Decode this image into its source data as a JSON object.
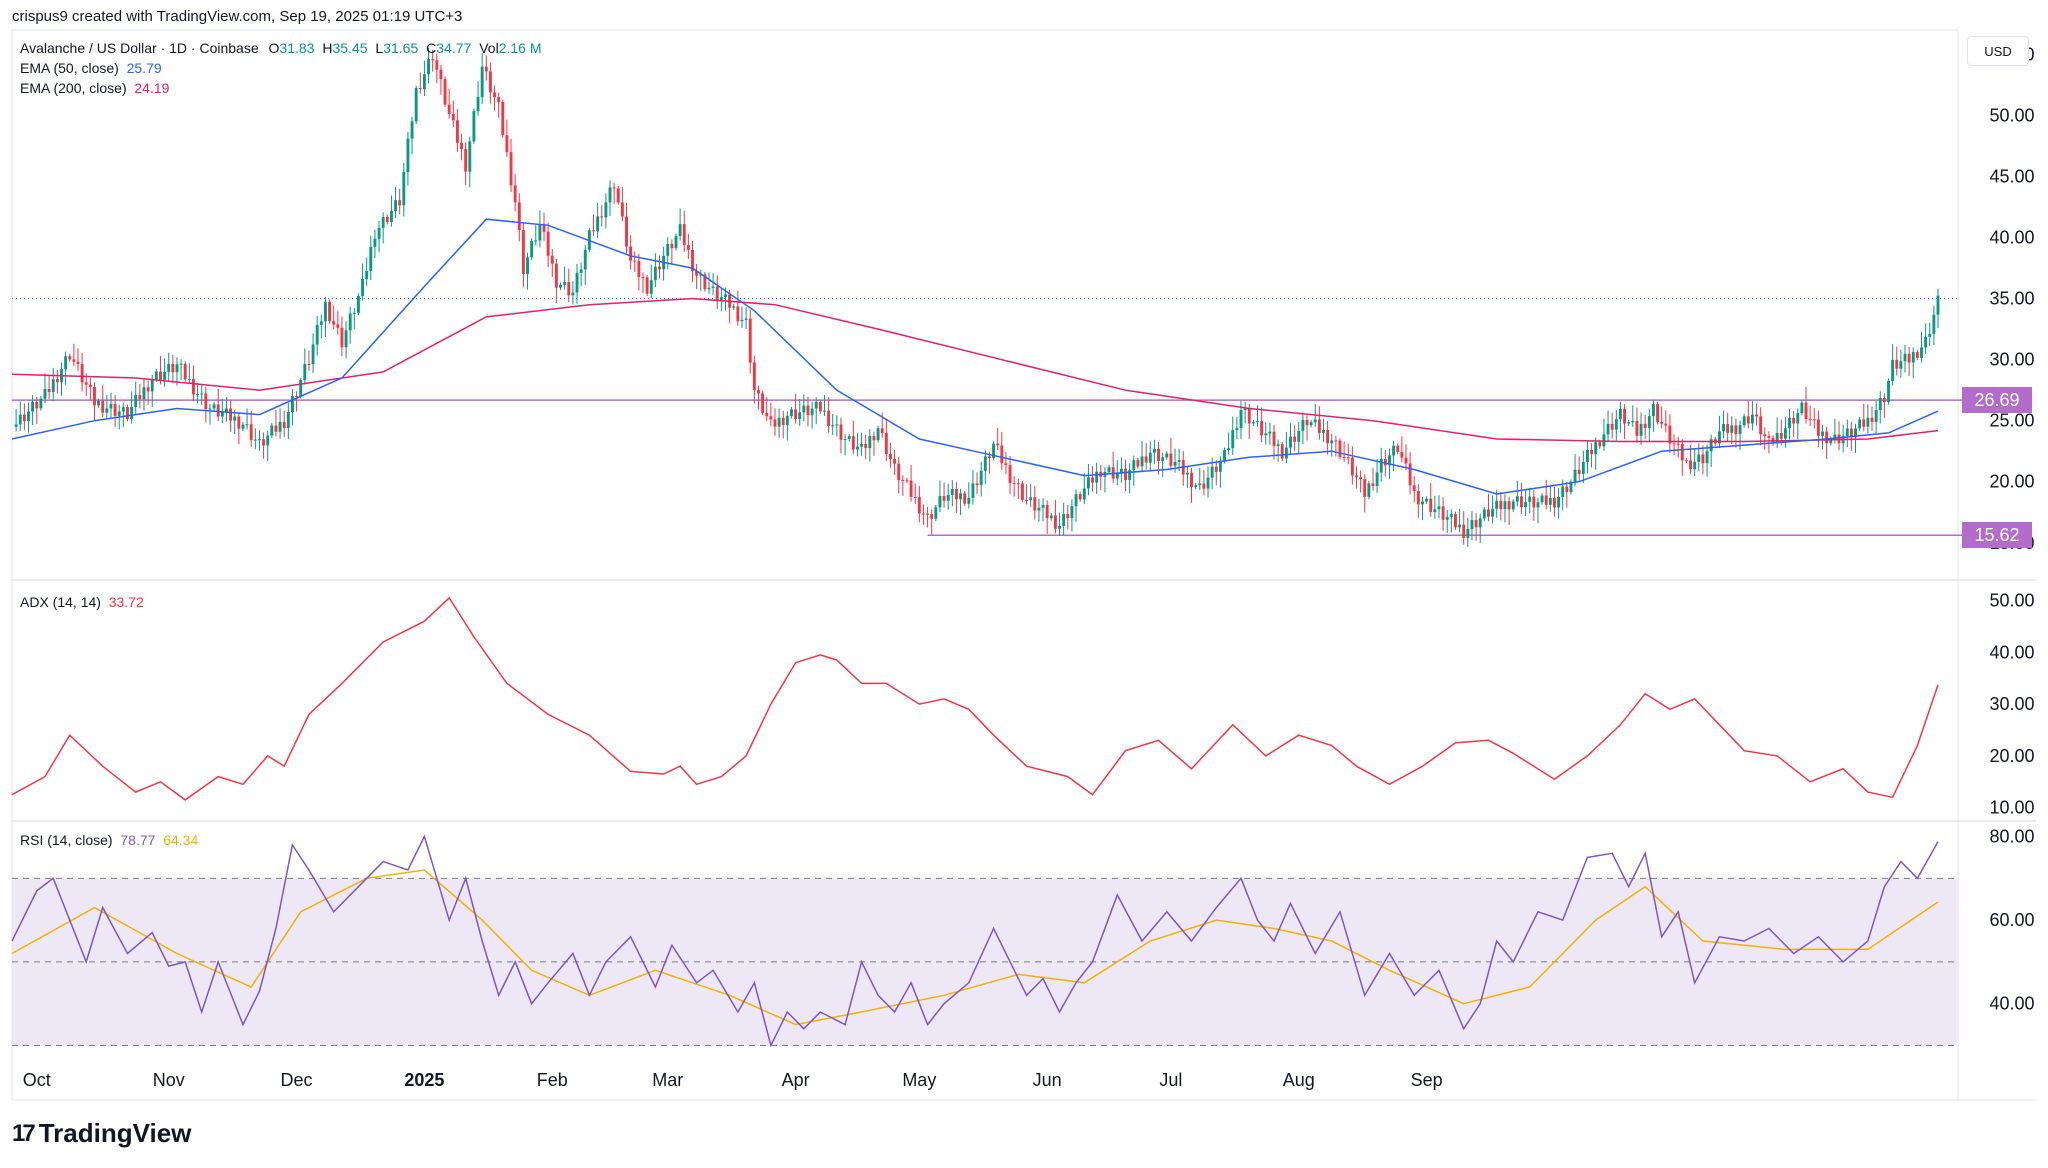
{
  "caption": "crispus9 created with TradingView.com, Sep 19, 2025 01:19 UTC+3",
  "brand": {
    "mark": "17",
    "name": "TradingView"
  },
  "currency": "USD",
  "legend": {
    "symbol": "Avalanche / US Dollar · 1D · Coinbase",
    "o_label": "O",
    "o_value": "31.83",
    "h_label": "H",
    "h_value": "35.45",
    "l_label": "L",
    "l_value": "31.65",
    "c_label": "C",
    "c_value": "34.77",
    "vol_label": "Vol",
    "vol_value": "2.16 M",
    "ema50_label": "EMA (50, close)",
    "ema50_value": "25.79",
    "ema200_label": "EMA (200, close)",
    "ema200_value": "24.19",
    "adx_label": "ADX (14, 14)",
    "adx_value": "33.72",
    "rsi_label": "RSI (14, close)",
    "rsi_value": "78.77",
    "rsi_ma_value": "64.34"
  },
  "colors": {
    "up": "#089981",
    "down": "#f23645",
    "ema50": "#2962ff",
    "ema200": "#e91e63",
    "adx": "#f23645",
    "rsi": "#7e57c2",
    "rsi_ma": "#f0b400",
    "level": "#b36cc9",
    "band": "#ede7f6"
  },
  "chart_data": {
    "type": "candlestick",
    "x_ticks": [
      "Oct",
      "Nov",
      "Dec",
      "2025",
      "Feb",
      "Mar",
      "Apr",
      "May",
      "Jun",
      "Jul",
      "Aug",
      "Sep"
    ],
    "price_axis": {
      "ticks": [
        "55.00",
        "50.00",
        "45.00",
        "40.00",
        "35.00",
        "30.00",
        "25.00",
        "20.00",
        "15.00"
      ],
      "range": [
        14,
        57
      ]
    },
    "levels": [
      {
        "value": 26.69,
        "label": "26.69"
      },
      {
        "value": 15.62,
        "label": "15.62"
      }
    ],
    "last_price": 34.77,
    "close_path": [
      [
        0,
        24.5
      ],
      [
        8,
        27.0
      ],
      [
        14,
        30.5
      ],
      [
        20,
        26.5
      ],
      [
        28,
        25.5
      ],
      [
        34,
        28.5
      ],
      [
        40,
        29.5
      ],
      [
        48,
        26.0
      ],
      [
        56,
        24.8
      ],
      [
        60,
        23.0
      ],
      [
        66,
        25.0
      ],
      [
        72,
        30.0
      ],
      [
        76,
        34.5
      ],
      [
        80,
        31.5
      ],
      [
        85,
        36.0
      ],
      [
        88,
        40.5
      ],
      [
        94,
        43.0
      ],
      [
        98,
        52.0
      ],
      [
        102,
        55.0
      ],
      [
        106,
        50.0
      ],
      [
        110,
        46.0
      ],
      [
        114,
        54.0
      ],
      [
        118,
        50.5
      ],
      [
        122,
        43.0
      ],
      [
        124,
        37.5
      ],
      [
        128,
        41.0
      ],
      [
        132,
        36.5
      ],
      [
        136,
        35.5
      ],
      [
        140,
        40.0
      ],
      [
        146,
        44.5
      ],
      [
        150,
        38.0
      ],
      [
        154,
        36.0
      ],
      [
        158,
        38.5
      ],
      [
        162,
        40.5
      ],
      [
        166,
        37.0
      ],
      [
        170,
        35.5
      ],
      [
        174,
        34.5
      ],
      [
        178,
        33.0
      ],
      [
        180,
        27.5
      ],
      [
        184,
        24.5
      ],
      [
        188,
        25.5
      ],
      [
        196,
        26.0
      ],
      [
        202,
        23.5
      ],
      [
        206,
        22.5
      ],
      [
        210,
        24.5
      ],
      [
        214,
        21.0
      ],
      [
        218,
        19.0
      ],
      [
        222,
        17.0
      ],
      [
        226,
        18.8
      ],
      [
        232,
        18.8
      ],
      [
        238,
        23.0
      ],
      [
        242,
        20.5
      ],
      [
        246,
        18.5
      ],
      [
        250,
        17.5
      ],
      [
        254,
        16.5
      ],
      [
        258,
        18.5
      ],
      [
        264,
        21.0
      ],
      [
        270,
        20.5
      ],
      [
        276,
        22.5
      ],
      [
        282,
        21.5
      ],
      [
        288,
        19.5
      ],
      [
        294,
        22.0
      ],
      [
        298,
        26.0
      ],
      [
        302,
        24.5
      ],
      [
        308,
        22.5
      ],
      [
        314,
        25.0
      ],
      [
        320,
        23.5
      ],
      [
        324,
        21.5
      ],
      [
        328,
        19.0
      ],
      [
        332,
        21.5
      ],
      [
        336,
        22.8
      ],
      [
        340,
        19.0
      ],
      [
        346,
        17.5
      ],
      [
        352,
        16.0
      ],
      [
        358,
        17.5
      ],
      [
        364,
        18.5
      ],
      [
        370,
        18.2
      ],
      [
        374,
        18.5
      ],
      [
        378,
        20.0
      ],
      [
        382,
        22.0
      ],
      [
        386,
        24.0
      ],
      [
        390,
        25.5
      ],
      [
        394,
        24.0
      ],
      [
        398,
        26.0
      ],
      [
        402,
        23.5
      ],
      [
        406,
        21.5
      ],
      [
        410,
        22.0
      ],
      [
        414,
        24.0
      ],
      [
        418,
        24.5
      ],
      [
        422,
        25.5
      ],
      [
        426,
        23.0
      ],
      [
        430,
        24.5
      ],
      [
        434,
        26.0
      ],
      [
        438,
        24.0
      ],
      [
        442,
        23.5
      ],
      [
        446,
        24.0
      ],
      [
        450,
        25.0
      ],
      [
        454,
        27.0
      ],
      [
        456,
        29.5
      ],
      [
        460,
        30.0
      ],
      [
        464,
        31.5
      ],
      [
        467,
        34.77
      ]
    ],
    "ema50_path": [
      [
        0,
        23.5
      ],
      [
        20,
        25.0
      ],
      [
        40,
        26.0
      ],
      [
        60,
        25.5
      ],
      [
        80,
        28.5
      ],
      [
        100,
        36.0
      ],
      [
        115,
        41.5
      ],
      [
        130,
        41.0
      ],
      [
        150,
        38.5
      ],
      [
        165,
        37.5
      ],
      [
        180,
        34.0
      ],
      [
        200,
        27.5
      ],
      [
        220,
        23.5
      ],
      [
        240,
        22.0
      ],
      [
        260,
        20.5
      ],
      [
        280,
        21.0
      ],
      [
        300,
        22.0
      ],
      [
        320,
        22.5
      ],
      [
        340,
        21.0
      ],
      [
        360,
        19.0
      ],
      [
        380,
        20.0
      ],
      [
        400,
        22.5
      ],
      [
        420,
        23.0
      ],
      [
        440,
        23.5
      ],
      [
        455,
        24.0
      ],
      [
        467,
        25.79
      ]
    ],
    "ema200_path": [
      [
        0,
        28.8
      ],
      [
        30,
        28.5
      ],
      [
        60,
        27.5
      ],
      [
        90,
        29.0
      ],
      [
        115,
        33.5
      ],
      [
        140,
        34.5
      ],
      [
        165,
        35.0
      ],
      [
        185,
        34.5
      ],
      [
        210,
        32.5
      ],
      [
        240,
        30.0
      ],
      [
        270,
        27.5
      ],
      [
        300,
        26.0
      ],
      [
        330,
        25.0
      ],
      [
        360,
        23.5
      ],
      [
        390,
        23.3
      ],
      [
        420,
        23.3
      ],
      [
        450,
        23.5
      ],
      [
        467,
        24.19
      ]
    ],
    "adx": {
      "axis_ticks": [
        "50.00",
        "40.00",
        "30.00",
        "20.00",
        "10.00"
      ],
      "range": [
        8,
        53
      ],
      "last": 33.72,
      "path": [
        [
          0,
          12.5
        ],
        [
          8,
          16
        ],
        [
          14,
          24
        ],
        [
          22,
          18
        ],
        [
          30,
          13
        ],
        [
          36,
          15
        ],
        [
          42,
          11.5
        ],
        [
          50,
          16
        ],
        [
          56,
          14.5
        ],
        [
          62,
          20
        ],
        [
          66,
          18
        ],
        [
          72,
          28
        ],
        [
          80,
          34
        ],
        [
          90,
          42
        ],
        [
          100,
          46
        ],
        [
          106,
          50.5
        ],
        [
          112,
          43
        ],
        [
          120,
          34
        ],
        [
          130,
          28
        ],
        [
          140,
          24
        ],
        [
          150,
          17
        ],
        [
          158,
          16.5
        ],
        [
          162,
          18
        ],
        [
          166,
          14.5
        ],
        [
          172,
          16
        ],
        [
          178,
          20
        ],
        [
          184,
          30
        ],
        [
          190,
          38
        ],
        [
          196,
          39.5
        ],
        [
          200,
          38.5
        ],
        [
          206,
          34
        ],
        [
          212,
          34
        ],
        [
          220,
          30
        ],
        [
          226,
          31
        ],
        [
          232,
          29
        ],
        [
          238,
          24
        ],
        [
          246,
          18
        ],
        [
          256,
          16
        ],
        [
          262,
          12.5
        ],
        [
          270,
          21
        ],
        [
          278,
          23
        ],
        [
          286,
          17.5
        ],
        [
          296,
          26
        ],
        [
          304,
          20
        ],
        [
          312,
          24
        ],
        [
          320,
          22
        ],
        [
          326,
          18
        ],
        [
          334,
          14.5
        ],
        [
          342,
          18
        ],
        [
          350,
          22.5
        ],
        [
          358,
          23
        ],
        [
          364,
          20.5
        ],
        [
          374,
          15.5
        ],
        [
          382,
          20
        ],
        [
          390,
          26
        ],
        [
          396,
          32
        ],
        [
          402,
          29
        ],
        [
          408,
          31
        ],
        [
          414,
          26
        ],
        [
          420,
          21
        ],
        [
          428,
          20
        ],
        [
          436,
          15
        ],
        [
          444,
          17.5
        ],
        [
          450,
          13
        ],
        [
          456,
          12
        ],
        [
          462,
          22
        ],
        [
          467,
          33.72
        ]
      ]
    },
    "rsi": {
      "axis_ticks": [
        "80.00",
        "60.00",
        "40.00"
      ],
      "range": [
        27,
        83
      ],
      "overbought": 70,
      "middle": 50,
      "oversold": 30,
      "last": 78.77,
      "ma_last": 64.34,
      "path": [
        [
          0,
          55
        ],
        [
          6,
          67
        ],
        [
          10,
          70
        ],
        [
          14,
          60
        ],
        [
          18,
          50
        ],
        [
          22,
          63
        ],
        [
          28,
          52
        ],
        [
          34,
          57
        ],
        [
          38,
          49
        ],
        [
          42,
          50
        ],
        [
          46,
          38
        ],
        [
          50,
          50
        ],
        [
          56,
          35
        ],
        [
          60,
          43
        ],
        [
          64,
          58
        ],
        [
          68,
          78
        ],
        [
          72,
          72
        ],
        [
          78,
          62
        ],
        [
          84,
          68
        ],
        [
          90,
          74
        ],
        [
          96,
          72
        ],
        [
          100,
          80
        ],
        [
          106,
          60
        ],
        [
          110,
          70
        ],
        [
          114,
          55
        ],
        [
          118,
          42
        ],
        [
          122,
          50
        ],
        [
          126,
          40
        ],
        [
          130,
          45
        ],
        [
          136,
          52
        ],
        [
          140,
          42
        ],
        [
          144,
          50
        ],
        [
          150,
          56
        ],
        [
          156,
          44
        ],
        [
          160,
          54
        ],
        [
          166,
          45
        ],
        [
          170,
          48
        ],
        [
          176,
          38
        ],
        [
          180,
          45
        ],
        [
          184,
          30
        ],
        [
          188,
          38
        ],
        [
          192,
          34
        ],
        [
          196,
          38
        ],
        [
          202,
          35
        ],
        [
          206,
          50
        ],
        [
          210,
          42
        ],
        [
          214,
          38
        ],
        [
          218,
          45
        ],
        [
          222,
          35
        ],
        [
          226,
          40
        ],
        [
          232,
          45
        ],
        [
          238,
          58
        ],
        [
          242,
          50
        ],
        [
          246,
          42
        ],
        [
          250,
          46
        ],
        [
          254,
          38
        ],
        [
          258,
          45
        ],
        [
          262,
          50
        ],
        [
          268,
          66
        ],
        [
          274,
          55
        ],
        [
          280,
          62
        ],
        [
          286,
          55
        ],
        [
          292,
          63
        ],
        [
          298,
          70
        ],
        [
          302,
          60
        ],
        [
          306,
          55
        ],
        [
          310,
          64
        ],
        [
          316,
          52
        ],
        [
          322,
          62
        ],
        [
          328,
          42
        ],
        [
          334,
          52
        ],
        [
          340,
          42
        ],
        [
          346,
          48
        ],
        [
          352,
          34
        ],
        [
          356,
          40
        ],
        [
          360,
          55
        ],
        [
          364,
          50
        ],
        [
          370,
          62
        ],
        [
          376,
          60
        ],
        [
          382,
          75
        ],
        [
          388,
          76
        ],
        [
          392,
          68
        ],
        [
          396,
          76
        ],
        [
          400,
          56
        ],
        [
          404,
          62
        ],
        [
          408,
          45
        ],
        [
          414,
          56
        ],
        [
          420,
          55
        ],
        [
          426,
          58
        ],
        [
          432,
          52
        ],
        [
          438,
          56
        ],
        [
          444,
          50
        ],
        [
          450,
          55
        ],
        [
          454,
          68
        ],
        [
          458,
          74
        ],
        [
          462,
          70
        ],
        [
          467,
          78.77
        ]
      ],
      "ma_path": [
        [
          0,
          52
        ],
        [
          20,
          63
        ],
        [
          40,
          52
        ],
        [
          58,
          44
        ],
        [
          70,
          62
        ],
        [
          86,
          70
        ],
        [
          100,
          72
        ],
        [
          114,
          60
        ],
        [
          126,
          48
        ],
        [
          140,
          42
        ],
        [
          156,
          48
        ],
        [
          174,
          42
        ],
        [
          190,
          35
        ],
        [
          206,
          38
        ],
        [
          226,
          42
        ],
        [
          244,
          47
        ],
        [
          260,
          45
        ],
        [
          276,
          55
        ],
        [
          292,
          60
        ],
        [
          306,
          58
        ],
        [
          320,
          55
        ],
        [
          334,
          48
        ],
        [
          352,
          40
        ],
        [
          368,
          44
        ],
        [
          384,
          60
        ],
        [
          396,
          68
        ],
        [
          410,
          55
        ],
        [
          430,
          53
        ],
        [
          450,
          53
        ],
        [
          467,
          64.34
        ]
      ]
    }
  }
}
